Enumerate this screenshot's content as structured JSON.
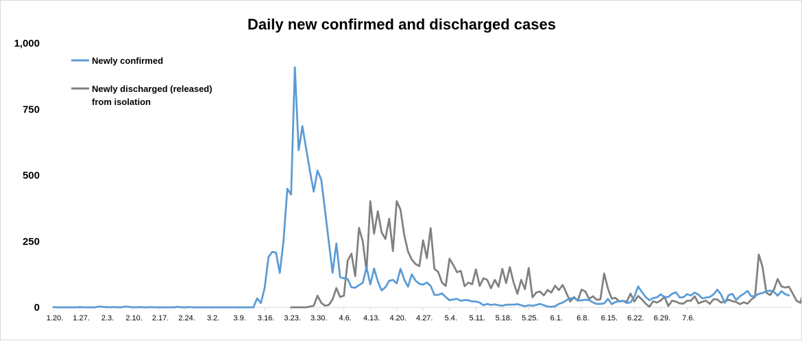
{
  "chart_data": {
    "type": "line",
    "title": "Daily new confirmed and discharged cases",
    "xlabel": "",
    "ylabel": "",
    "ylim": [
      0,
      1000
    ],
    "yticks": [
      {
        "value": 0,
        "label": "0"
      },
      {
        "value": 250,
        "label": "250"
      },
      {
        "value": 500,
        "label": "500"
      },
      {
        "value": 750,
        "label": "750"
      },
      {
        "value": 1000,
        "label": "1,000"
      }
    ],
    "x_start": "1.20.",
    "x_end": "7.10.",
    "x_ticks": [
      "1.20.",
      "1.27.",
      "2.3.",
      "2.10.",
      "2.17.",
      "2.24.",
      "3.2.",
      "3.9.",
      "3.16.",
      "3.23.",
      "3.30.",
      "4.6.",
      "4.13.",
      "4.20.",
      "4.27.",
      "5.4.",
      "5.11.",
      "5.18.",
      "5.25.",
      "6.1.",
      "6.8.",
      "6.15.",
      "6.22.",
      "6.29.",
      "7.6."
    ],
    "grid": false,
    "legend_position": "top-left",
    "series": [
      {
        "name": "Newly confirmed",
        "color": "#5b9bd5",
        "values": [
          1,
          0,
          0,
          0,
          0,
          0,
          0,
          1,
          0,
          0,
          0,
          0,
          3,
          2,
          1,
          0,
          1,
          0,
          0,
          3,
          2,
          0,
          0,
          1,
          0,
          0,
          1,
          0,
          0,
          0,
          0,
          0,
          0,
          2,
          0,
          0,
          1,
          0,
          0,
          0,
          0,
          0,
          0,
          0,
          0,
          0,
          0,
          0,
          0,
          0,
          0,
          0,
          0,
          0,
          34,
          16,
          74,
          190,
          210,
          207,
          130,
          253,
          449,
          427,
          909,
          595,
          686,
          600,
          516,
          438,
          518,
          483,
          367,
          248,
          131,
          242,
          114,
          110,
          107,
          76,
          74,
          84,
          93,
          152,
          87,
          147,
          98,
          64,
          76,
          100,
          104,
          91,
          146,
          105,
          78,
          125,
          101,
          89,
          86,
          94,
          81,
          47,
          47,
          53,
          39,
          27,
          30,
          32,
          25,
          27,
          27,
          22,
          22,
          18,
          8,
          13,
          9,
          11,
          8,
          6,
          10,
          10,
          10,
          12,
          8,
          4,
          8,
          6,
          9,
          13,
          8,
          3,
          2,
          4,
          13,
          18,
          27,
          34,
          35,
          27,
          26,
          29,
          27,
          19,
          13,
          13,
          15,
          32,
          12,
          20,
          23,
          25,
          16,
          19,
          40,
          79,
          58,
          39,
          27,
          35,
          38,
          49,
          39,
          39,
          51,
          57,
          38,
          38,
          50,
          45,
          56,
          48,
          34,
          37,
          39,
          49,
          67,
          48,
          17,
          46,
          51,
          28,
          42,
          51,
          62,
          42,
          43,
          51,
          54,
          61,
          63,
          59,
          44,
          61,
          50,
          45
        ]
      },
      {
        "name": "Newly discharged (released) from isolation",
        "color": "#808080",
        "values": [
          null,
          null,
          null,
          null,
          null,
          null,
          null,
          null,
          null,
          null,
          null,
          null,
          null,
          null,
          null,
          null,
          null,
          null,
          null,
          null,
          null,
          null,
          null,
          null,
          null,
          null,
          null,
          null,
          null,
          null,
          null,
          null,
          null,
          null,
          null,
          null,
          null,
          null,
          null,
          null,
          null,
          null,
          null,
          null,
          null,
          null,
          null,
          null,
          null,
          null,
          null,
          null,
          null,
          null,
          null,
          null,
          null,
          null,
          null,
          null,
          null,
          null,
          null,
          0,
          0,
          0,
          0,
          0,
          3,
          6,
          44,
          17,
          6,
          9,
          30,
          73,
          39,
          44,
          177,
          203,
          118,
          301,
          250,
          137,
          402,
          279,
          364,
          284,
          259,
          335,
          213,
          402,
          370,
          274,
          211,
          181,
          164,
          156,
          254,
          186,
          300,
          146,
          134,
          94,
          81,
          184,
          160,
          133,
          138,
          80,
          94,
          87,
          144,
          81,
          110,
          104,
          72,
          104,
          78,
          146,
          92,
          152,
          94,
          51,
          104,
          69,
          149,
          38,
          56,
          60,
          45,
          66,
          56,
          82,
          65,
          85,
          54,
          22,
          39,
          25,
          67,
          60,
          32,
          42,
          29,
          30,
          128,
          71,
          33,
          36,
          22,
          24,
          22,
          52,
          22,
          43,
          30,
          14,
          2,
          23,
          18,
          26,
          40,
          5,
          25,
          22,
          15,
          14,
          25,
          25,
          42,
          15,
          21,
          25,
          13,
          31,
          30,
          18,
          22,
          29,
          23,
          20,
          12,
          19,
          14,
          29,
          40,
          200,
          152,
          56,
          46,
          67,
          107,
          79,
          75,
          78,
          52,
          25,
          17,
          65,
          60,
          58,
          45
        ]
      }
    ]
  }
}
